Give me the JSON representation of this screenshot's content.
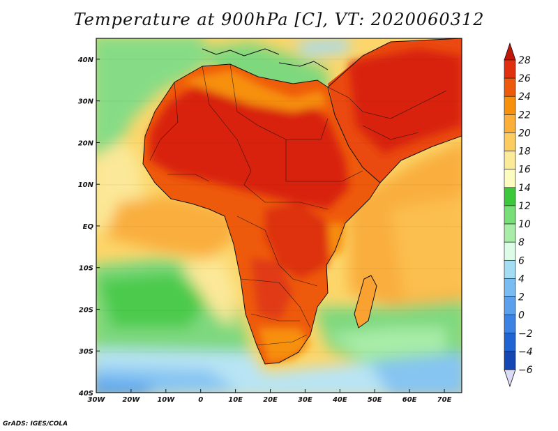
{
  "title": "Temperature at 900hPa [C], VT: 2020060312",
  "credit": "GrADS: IGES/COLA",
  "map": {
    "projection": "lat-lon",
    "lon_range": [
      -30,
      75
    ],
    "lat_range": [
      -40,
      45
    ],
    "lon_ticks": [
      {
        "value": -30,
        "label": "30W"
      },
      {
        "value": -20,
        "label": "20W"
      },
      {
        "value": -10,
        "label": "10W"
      },
      {
        "value": 0,
        "label": "0"
      },
      {
        "value": 10,
        "label": "10E"
      },
      {
        "value": 20,
        "label": "20E"
      },
      {
        "value": 30,
        "label": "30E"
      },
      {
        "value": 40,
        "label": "40E"
      },
      {
        "value": 50,
        "label": "50E"
      },
      {
        "value": 60,
        "label": "60E"
      },
      {
        "value": 70,
        "label": "70E"
      }
    ],
    "lat_ticks": [
      {
        "value": 40,
        "label": "40N"
      },
      {
        "value": 30,
        "label": "30N"
      },
      {
        "value": 20,
        "label": "20N"
      },
      {
        "value": 10,
        "label": "10N"
      },
      {
        "value": 0,
        "label": "EQ"
      },
      {
        "value": -10,
        "label": "10S"
      },
      {
        "value": -20,
        "label": "20S"
      },
      {
        "value": -30,
        "label": "30S"
      },
      {
        "value": -40,
        "label": "40S"
      }
    ]
  },
  "colorbar": {
    "levels": [
      28,
      26,
      24,
      22,
      20,
      18,
      16,
      14,
      12,
      10,
      8,
      6,
      4,
      2,
      0,
      -2,
      -4,
      -6
    ],
    "labels": [
      "28",
      "26",
      "24",
      "22",
      "20",
      "18",
      "16",
      "14",
      "12",
      "10",
      "8",
      "6",
      "4",
      "2",
      "0",
      "−2",
      "−4",
      "−6"
    ],
    "colors": [
      "#e03010",
      "#ee5a0c",
      "#f7900a",
      "#fbae38",
      "#fdcc60",
      "#fbea98",
      "#fcfcc0",
      "#3cc83c",
      "#78de78",
      "#a8eca8",
      "#dcfce8",
      "#a4dcf4",
      "#78bcf2",
      "#5aa0ec",
      "#3c82e4",
      "#2064d4",
      "#1446b4",
      "#0c2890"
    ],
    "top_arrow_color": "#c01808",
    "bottom_arrow_color": "#dcdcf8"
  }
}
